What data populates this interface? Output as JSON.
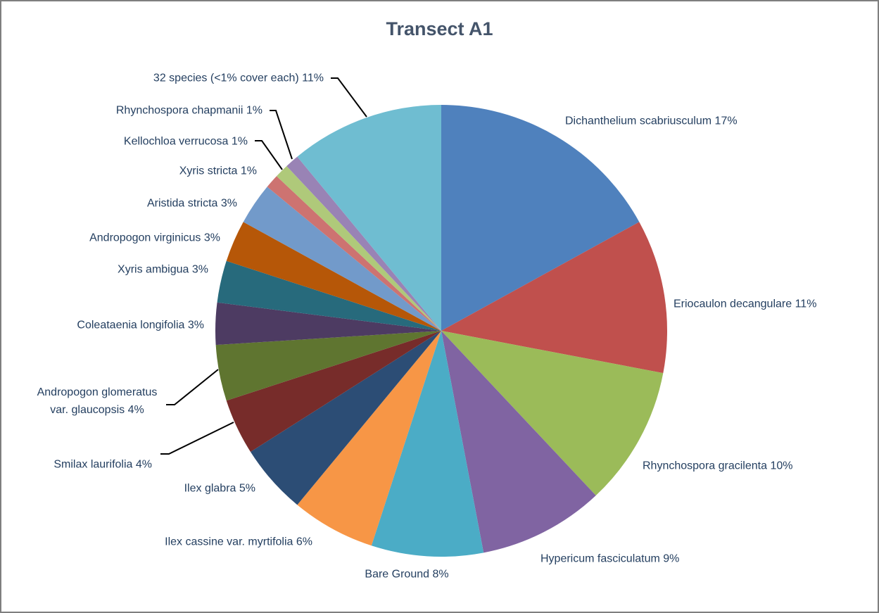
{
  "chart_data": {
    "type": "pie",
    "title": "Transect A1",
    "categories": [
      "Dichanthelium scabriusculum",
      "Eriocaulon decangulare",
      "Rhynchospora gracilenta",
      "Hypericum fasciculatum",
      "Bare Ground",
      "Ilex cassine var. myrtifolia",
      "Ilex glabra",
      "Smilax laurifolia",
      "Andropogon glomeratus var. glaucopsis",
      "Coleataenia longifolia",
      "Xyris ambigua",
      "Andropogon virginicus",
      "Aristida stricta",
      "Xyris stricta",
      "Kellochloa verrucosa",
      "Rhynchospora chapmanii",
      "32 species (<1% cover each)"
    ],
    "values": [
      17,
      11,
      10,
      9,
      8,
      6,
      5,
      4,
      4,
      3,
      3,
      3,
      3,
      1,
      1,
      1,
      11
    ],
    "value_labels": [
      "17%",
      "11%",
      "10%",
      "9%",
      "8%",
      "6%",
      "5%",
      "4%",
      "4%",
      "3%",
      "3%",
      "3%",
      "3%",
      "1%",
      "1%",
      "1%",
      "11%"
    ],
    "colors": [
      "#4f81bd",
      "#c0504d",
      "#9bbb59",
      "#8064a2",
      "#4bacc6",
      "#f79646",
      "#2c4d75",
      "#772c2a",
      "#5f7530",
      "#4d3b62",
      "#276a7c",
      "#b65708",
      "#729aca",
      "#cd7371",
      "#afc97a",
      "#9983b5",
      "#6fbdd1"
    ]
  }
}
